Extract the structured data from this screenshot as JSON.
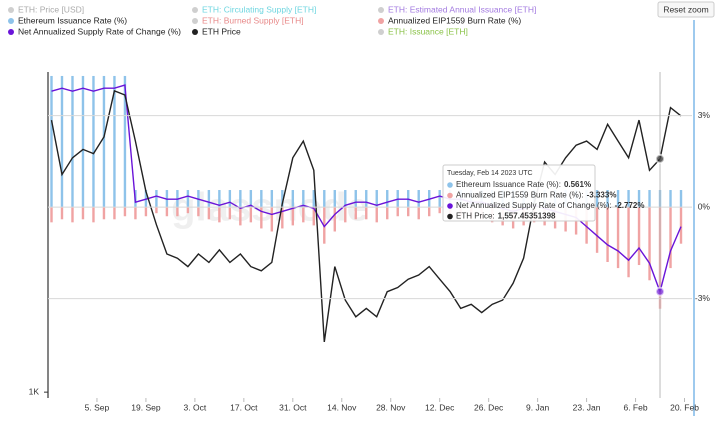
{
  "chart_data": {
    "type": "bar-line",
    "reset_button": "Reset zoom",
    "watermark": "glassnode",
    "x": [
      -13,
      -10,
      -7,
      -4,
      -1,
      2,
      5,
      8,
      11,
      14,
      17,
      20,
      23,
      26,
      29,
      32,
      35,
      38,
      41,
      44,
      47,
      50,
      53,
      56,
      59,
      62,
      65,
      68,
      71,
      74,
      77,
      80,
      83,
      86,
      89,
      92,
      95,
      98,
      101,
      104,
      107,
      110,
      113,
      116,
      119,
      122,
      125,
      128,
      131,
      134,
      137,
      140,
      143,
      146,
      149,
      152,
      155,
      158,
      161,
      164,
      167
    ],
    "xlim": [
      -14,
      171
    ],
    "xticks": [
      {
        "value": 0,
        "label": "5. Sep"
      },
      {
        "value": 14,
        "label": "19. Sep"
      },
      {
        "value": 28,
        "label": "3. Oct"
      },
      {
        "value": 42,
        "label": "17. Oct"
      },
      {
        "value": 56,
        "label": "31. Oct"
      },
      {
        "value": 70,
        "label": "14. Nov"
      },
      {
        "value": 84,
        "label": "28. Nov"
      },
      {
        "value": 98,
        "label": "12. Dec"
      },
      {
        "value": 112,
        "label": "26. Dec"
      },
      {
        "value": 126,
        "label": "9. Jan"
      },
      {
        "value": 140,
        "label": "23. Jan"
      },
      {
        "value": 154,
        "label": "6. Feb"
      },
      {
        "value": 168,
        "label": "20. Feb"
      }
    ],
    "ylim": [
      986,
      1765
    ],
    "yticks": [
      {
        "value": 1000,
        "label": "1K"
      }
    ],
    "y2lim": [
      -6.26,
      4.43
    ],
    "y2ticks": [
      {
        "value": 3,
        "label": "3%"
      },
      {
        "value": 0,
        "label": "0%"
      },
      {
        "value": -3,
        "label": "-3%"
      }
    ],
    "grid": true,
    "series": [
      {
        "name": "ETH: Price [USD]",
        "color": "#aaaaaa",
        "visible": false
      },
      {
        "name": "ETH: Circulating Supply [ETH]",
        "color": "#6fd6e0",
        "visible": false
      },
      {
        "name": "ETH: Estimated Annual Issuance [ETH]",
        "color": "#a37be0",
        "visible": false
      },
      {
        "name": "Ethereum Issuance Rate (%)",
        "color": "#8ec3ea",
        "visible": true,
        "kind": "bar",
        "axis": "y2",
        "values": [
          4.3,
          4.3,
          4.3,
          4.3,
          4.3,
          4.3,
          4.3,
          4.3,
          0.56,
          0.56,
          0.56,
          0.56,
          0.56,
          0.56,
          0.56,
          0.56,
          0.56,
          0.56,
          0.56,
          0.56,
          0.56,
          0.56,
          0.56,
          0.56,
          0.56,
          0.56,
          0.56,
          0.56,
          0.56,
          0.56,
          0.56,
          0.56,
          0.56,
          0.56,
          0.56,
          0.56,
          0.56,
          0.56,
          0.56,
          0.56,
          0.56,
          0.56,
          0.56,
          0.56,
          0.56,
          0.56,
          0.56,
          0.56,
          0.56,
          0.56,
          0.56,
          0.56,
          0.56,
          0.56,
          0.56,
          0.56,
          0.56,
          0.56,
          0.561,
          0.56,
          0.56
        ]
      },
      {
        "name": "ETH: Burned Supply [ETH]",
        "color": "#e88a8a",
        "visible": false
      },
      {
        "name": "Annualized EIP1559 Burn Rate (%)",
        "color": "#f0a3a3",
        "visible": true,
        "kind": "bar",
        "axis": "y2",
        "values": [
          -0.5,
          -0.4,
          -0.5,
          -0.4,
          -0.5,
          -0.4,
          -0.4,
          -0.3,
          -0.4,
          -0.3,
          -0.2,
          -0.3,
          -0.3,
          -0.2,
          -0.3,
          -0.4,
          -0.5,
          -0.4,
          -0.6,
          -0.5,
          -0.7,
          -0.8,
          -0.7,
          -0.6,
          -0.5,
          -0.6,
          -1.2,
          -0.8,
          -0.5,
          -0.4,
          -0.4,
          -0.5,
          -0.4,
          -0.3,
          -0.3,
          -0.4,
          -0.3,
          -0.2,
          -0.3,
          -0.3,
          -0.4,
          -0.4,
          -0.5,
          -0.6,
          -0.7,
          -0.6,
          -0.5,
          -0.6,
          -0.7,
          -0.8,
          -0.9,
          -1.2,
          -1.5,
          -1.8,
          -2.0,
          -2.3,
          -1.9,
          -2.4,
          -3.333,
          -2.0,
          -1.2
        ]
      },
      {
        "name": "Net Annualized Supply Rate of Change (%)",
        "color": "#6a14d9",
        "visible": true,
        "kind": "line",
        "axis": "y2",
        "values": [
          3.8,
          3.9,
          3.8,
          3.9,
          3.8,
          3.9,
          3.9,
          4.0,
          0.16,
          0.26,
          0.36,
          0.26,
          0.26,
          0.36,
          0.26,
          0.16,
          0.06,
          0.16,
          -0.04,
          0.06,
          -0.14,
          -0.24,
          -0.14,
          -0.04,
          0.06,
          -0.04,
          -0.64,
          -0.24,
          0.06,
          0.16,
          0.16,
          0.06,
          0.16,
          0.26,
          0.26,
          0.16,
          0.26,
          0.36,
          0.26,
          0.26,
          0.16,
          0.16,
          0.06,
          -0.04,
          -0.14,
          -0.04,
          0.06,
          -0.04,
          -0.14,
          -0.24,
          -0.34,
          -0.64,
          -0.94,
          -1.24,
          -1.44,
          -1.74,
          -1.34,
          -1.84,
          -2.772,
          -1.44,
          -0.64
        ]
      },
      {
        "name": "ETH Price",
        "color": "#222222",
        "visible": true,
        "kind": "line",
        "axis": "y",
        "values": [
          1650,
          1520,
          1560,
          1580,
          1570,
          1610,
          1720,
          1710,
          1600,
          1480,
          1400,
          1330,
          1320,
          1300,
          1330,
          1310,
          1340,
          1310,
          1330,
          1300,
          1290,
          1310,
          1450,
          1560,
          1600,
          1530,
          1120,
          1300,
          1220,
          1180,
          1200,
          1180,
          1240,
          1250,
          1270,
          1280,
          1300,
          1270,
          1240,
          1200,
          1210,
          1190,
          1210,
          1220,
          1260,
          1320,
          1450,
          1550,
          1520,
          1560,
          1590,
          1600,
          1580,
          1640,
          1600,
          1560,
          1650,
          1530,
          1557.45351398,
          1680,
          1660
        ]
      },
      {
        "name": "ETH: Issuance [ETH]",
        "color": "#8bc34a",
        "visible": false
      }
    ],
    "tooltip": {
      "index": 58,
      "date": "Tuesday, Feb 14 2023 UTC",
      "rows": [
        {
          "series": 3,
          "label": "Ethereum Issuance Rate (%):",
          "value": "0.561%"
        },
        {
          "series": 5,
          "label": "Annualized EIP1559 Burn Rate (%):",
          "value": "-3.333%"
        },
        {
          "series": 6,
          "label": "Net Annualized Supply Rate of Change (%):",
          "value": "-2.772%"
        },
        {
          "series": 7,
          "label": "ETH Price:",
          "value": "1,557.45351398"
        }
      ]
    }
  }
}
